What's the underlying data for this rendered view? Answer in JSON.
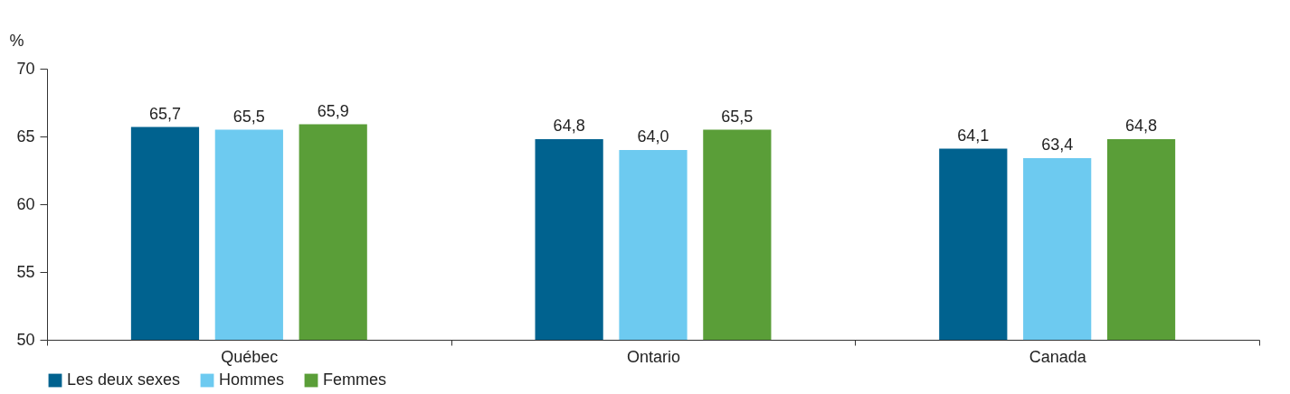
{
  "chart_data": {
    "type": "bar",
    "ylabel": "%",
    "categories": [
      "Québec",
      "Ontario",
      "Canada"
    ],
    "series": [
      {
        "name": "Les deux sexes",
        "color": "#00628f",
        "values": [
          65.7,
          64.8,
          64.1
        ],
        "value_labels": [
          "65,7",
          "64,8",
          "64,1"
        ]
      },
      {
        "name": "Hommes",
        "color": "#6dcaf0",
        "values": [
          65.5,
          64.0,
          63.4
        ],
        "value_labels": [
          "65,5",
          "64,0",
          "63,4"
        ]
      },
      {
        "name": "Femmes",
        "color": "#5a9e38",
        "values": [
          65.9,
          65.5,
          64.8
        ],
        "value_labels": [
          "65,9",
          "65,5",
          "64,8"
        ]
      }
    ],
    "ylim": [
      50,
      70
    ],
    "yticks": [
      50,
      55,
      60,
      65,
      70
    ],
    "grid": false,
    "legend": "bottom"
  }
}
